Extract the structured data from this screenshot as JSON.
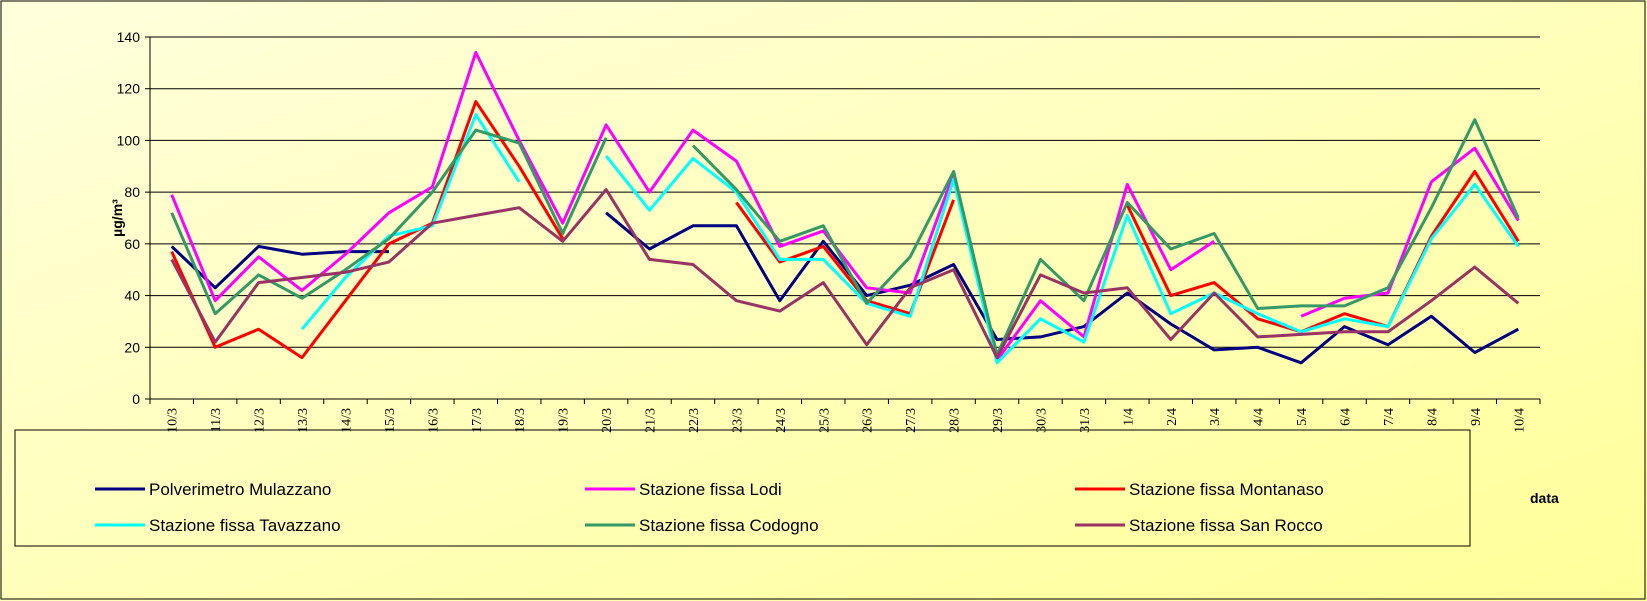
{
  "chart_data": {
    "type": "line",
    "y_label": "µg/m³",
    "x_label": "data",
    "categories": [
      "10/3",
      "11/3",
      "12/3",
      "13/3",
      "14/3",
      "15/3",
      "16/3",
      "17/3",
      "18/3",
      "19/3",
      "20/3",
      "21/3",
      "22/3",
      "23/3",
      "24/3",
      "25/3",
      "26/3",
      "27/3",
      "28/3",
      "29/3",
      "30/3",
      "31/3",
      "1/4",
      "2/4",
      "3/4",
      "4/4",
      "5/4",
      "6/4",
      "7/4",
      "8/4",
      "9/4",
      "10/4"
    ],
    "series": [
      {
        "name": "Polverimetro Mulazzano",
        "color": "#000080",
        "values": [
          59,
          43,
          59,
          56,
          57,
          57,
          null,
          null,
          null,
          null,
          72,
          58,
          67,
          67,
          38,
          61,
          40,
          44,
          52,
          23,
          24,
          28,
          41,
          29,
          19,
          20,
          14,
          28,
          21,
          32,
          18,
          27
        ]
      },
      {
        "name": "Stazione fissa Lodi",
        "color": "#ff00ff",
        "values": [
          79,
          38,
          55,
          42,
          56,
          72,
          82,
          134,
          100,
          68,
          106,
          80,
          104,
          92,
          59,
          65,
          43,
          41,
          87,
          15,
          38,
          24,
          83,
          50,
          61,
          null,
          32,
          39,
          41,
          84,
          97,
          69
        ]
      },
      {
        "name": "Stazione fissa Montanaso",
        "color": "#ff0000",
        "values": [
          57,
          20,
          27,
          16,
          38,
          60,
          68,
          115,
          90,
          62,
          null,
          null,
          null,
          76,
          53,
          59,
          38,
          33,
          77,
          null,
          null,
          null,
          75,
          40,
          45,
          31,
          26,
          33,
          28,
          63,
          88,
          61
        ]
      },
      {
        "name": "Stazione fissa Tavazzano",
        "color": "#00ffff",
        "values": [
          null,
          null,
          null,
          27,
          47,
          63,
          67,
          110,
          84,
          null,
          94,
          73,
          93,
          80,
          54,
          54,
          37,
          32,
          85,
          14,
          31,
          22,
          71,
          33,
          41,
          33,
          26,
          31,
          28,
          62,
          83,
          59
        ]
      },
      {
        "name": "Stazione fissa Codogno",
        "color": "#339966",
        "values": [
          72,
          33,
          48,
          39,
          50,
          62,
          80,
          104,
          99,
          64,
          101,
          null,
          98,
          81,
          61,
          67,
          37,
          55,
          88,
          17,
          54,
          38,
          76,
          58,
          64,
          35,
          36,
          36,
          43,
          74,
          108,
          70
        ]
      },
      {
        "name": "Stazione fissa San Rocco",
        "color": "#993366",
        "values": [
          54,
          22,
          45,
          47,
          49,
          53,
          68,
          71,
          74,
          61,
          81,
          54,
          52,
          38,
          34,
          45,
          21,
          43,
          50,
          16,
          48,
          41,
          43,
          23,
          41,
          24,
          25,
          26,
          26,
          38,
          51,
          37
        ]
      }
    ],
    "ylim": [
      0,
      140
    ],
    "yticks": [
      0,
      20,
      40,
      60,
      80,
      100,
      120,
      140
    ],
    "grid": true,
    "legend": "bottom"
  }
}
